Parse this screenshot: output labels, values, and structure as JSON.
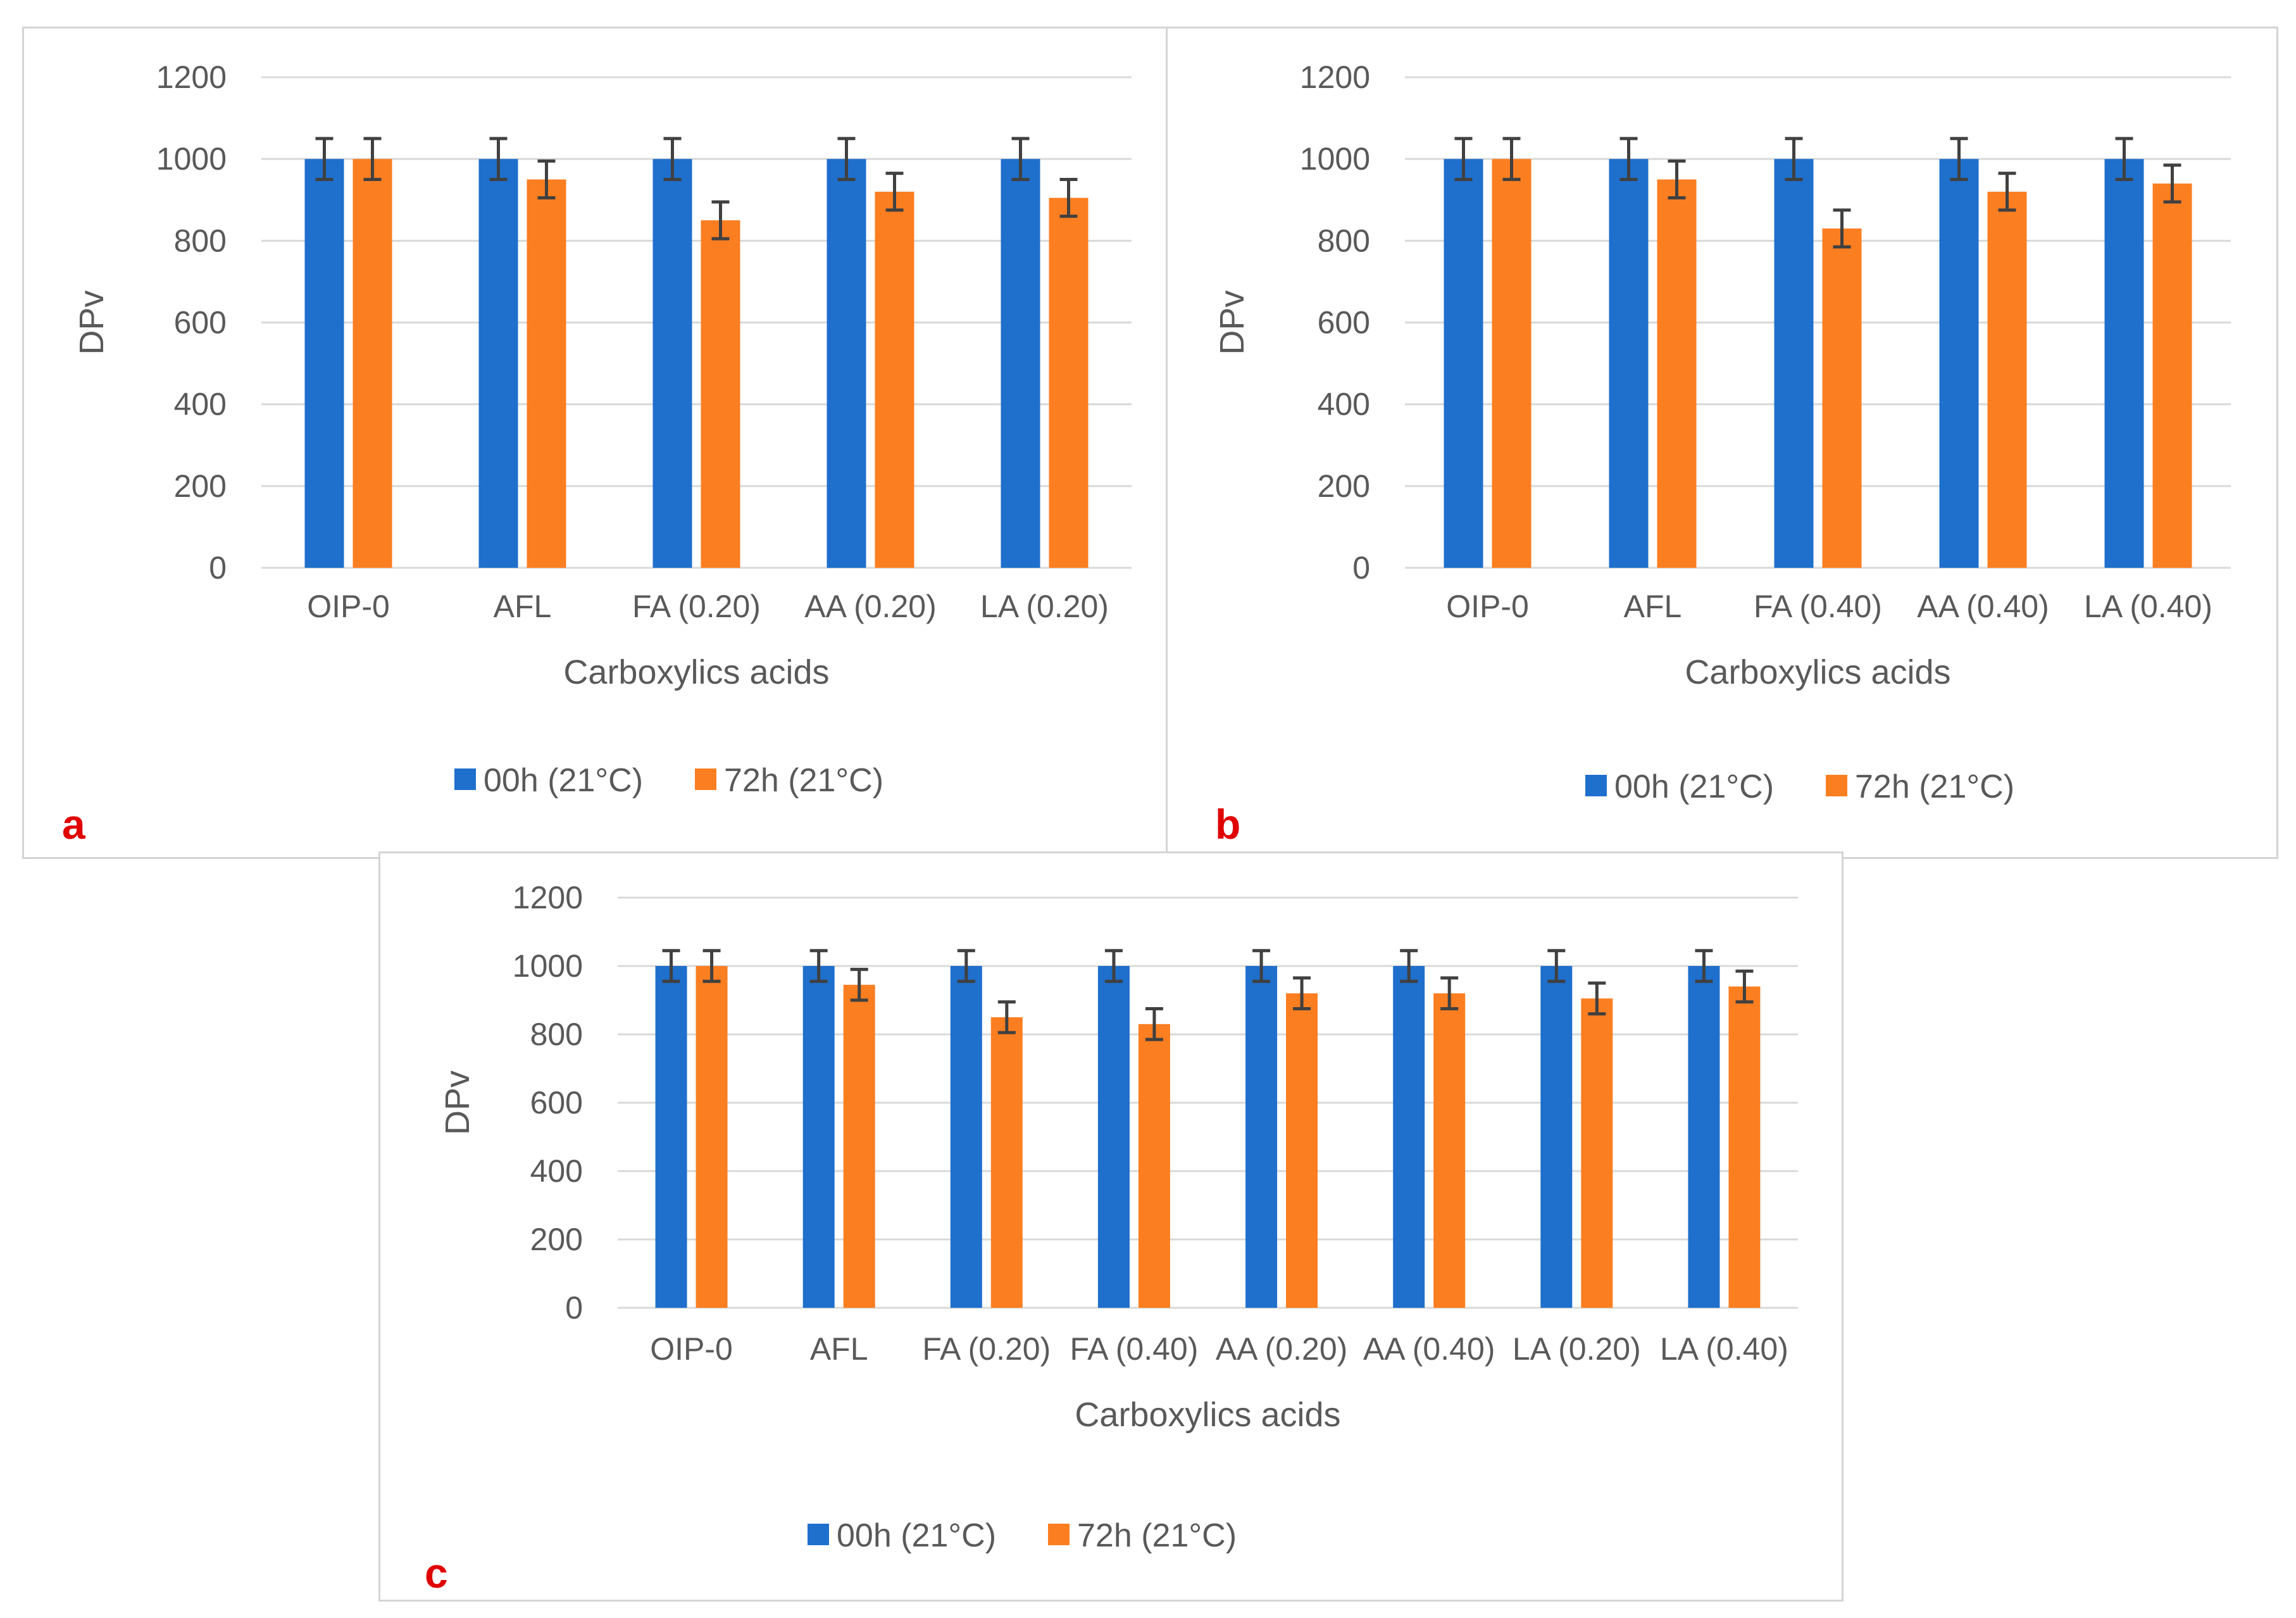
{
  "colors": {
    "series0": "#1f6fcc",
    "series1": "#fb7e21",
    "grid": "#d9d9d9",
    "text": "#595959",
    "label": "#e00000",
    "error": "#404040"
  },
  "chart_data": [
    {
      "panel": "a",
      "type": "bar",
      "xlabel": "Carboxylics acids",
      "ylabel": "DPv",
      "ylim": [
        0,
        1200
      ],
      "yticks": [
        0,
        200,
        400,
        600,
        800,
        1000,
        1200
      ],
      "categories": [
        "OIP-0",
        "AFL",
        "FA (0.20)",
        "AA (0.20)",
        "LA (0.20)"
      ],
      "series": [
        {
          "name": "00h (21°C)",
          "values": [
            1000,
            1000,
            1000,
            1000,
            1000
          ],
          "errors": [
            50,
            50,
            50,
            50,
            50
          ]
        },
        {
          "name": "72h (21°C)",
          "values": [
            1000,
            950,
            850,
            920,
            905
          ],
          "errors": [
            50,
            45,
            45,
            45,
            45
          ]
        }
      ],
      "legend": "bottom"
    },
    {
      "panel": "b",
      "type": "bar",
      "xlabel": "Carboxylics acids",
      "ylabel": "DPv",
      "ylim": [
        0,
        1200
      ],
      "yticks": [
        0,
        200,
        400,
        600,
        800,
        1000,
        1200
      ],
      "categories": [
        "OIP-0",
        "AFL",
        "FA (0.40)",
        "AA (0.40)",
        "LA (0.40)"
      ],
      "series": [
        {
          "name": "00h (21°C)",
          "values": [
            1000,
            1000,
            1000,
            1000,
            1000
          ],
          "errors": [
            50,
            50,
            50,
            50,
            50
          ]
        },
        {
          "name": "72h (21°C)",
          "values": [
            1000,
            950,
            830,
            920,
            940
          ],
          "errors": [
            50,
            45,
            45,
            45,
            45
          ]
        }
      ],
      "legend": "bottom"
    },
    {
      "panel": "c",
      "type": "bar",
      "xlabel": "Carboxylics acids",
      "ylabel": "DPv",
      "ylim": [
        0,
        1200
      ],
      "yticks": [
        0,
        200,
        400,
        600,
        800,
        1000,
        1200
      ],
      "categories": [
        "OIP-0",
        "AFL",
        "FA (0.20)",
        "FA (0.40)",
        "AA (0.20)",
        "AA (0.40)",
        "LA (0.20)",
        "LA (0.40)"
      ],
      "series": [
        {
          "name": "00h (21°C)",
          "values": [
            1000,
            1000,
            1000,
            1000,
            1000,
            1000,
            1000,
            1000
          ],
          "errors": [
            45,
            45,
            45,
            45,
            45,
            45,
            45,
            45
          ]
        },
        {
          "name": "72h (21°C)",
          "values": [
            1000,
            945,
            850,
            830,
            920,
            920,
            905,
            940
          ],
          "errors": [
            45,
            45,
            45,
            45,
            45,
            45,
            45,
            45
          ]
        }
      ],
      "legend": "bottom"
    }
  ]
}
